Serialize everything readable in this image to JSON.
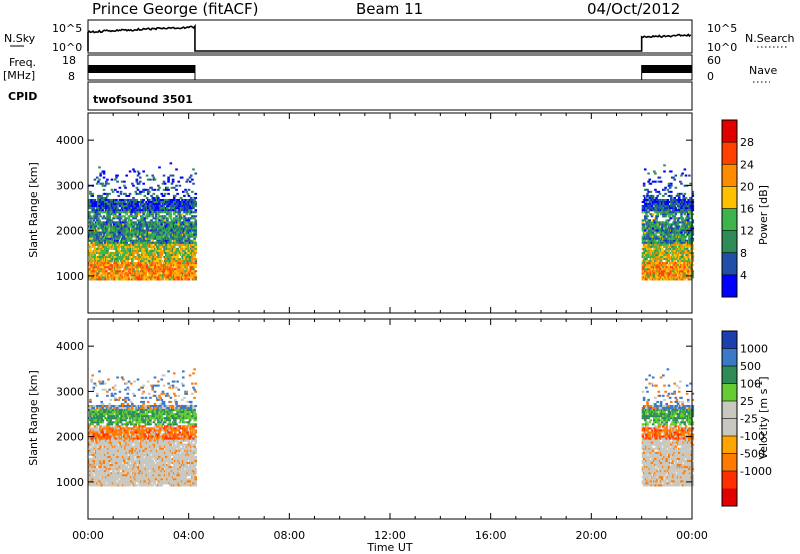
{
  "header": {
    "station": "Prince George (fitACF)",
    "beam": "Beam 11",
    "date": "04/Oct/2012"
  },
  "strips": {
    "nsky_label": "N.Sky",
    "nsky_ticks": [
      "10^5",
      "10^0"
    ],
    "nsearch_label": "N.Search",
    "freq_label": "Freq.",
    "freq_unit": "[MHz]",
    "freq_ticks": [
      "18",
      "8"
    ],
    "nave_label": "Nave",
    "nave_ticks": [
      "60",
      "0"
    ],
    "cpid_label": "CPID",
    "cpid_name": "twofsound 3501"
  },
  "chart_data": [
    {
      "type": "heatmap",
      "quantity": "power",
      "ylabel": "Slant Range [km]",
      "xlabel": "Time UT",
      "x_ticks": [
        "00:00",
        "04:00",
        "08:00",
        "12:00",
        "16:00",
        "20:00",
        "00:00"
      ],
      "xlim_hours": [
        0,
        24
      ],
      "y_ticks": [
        1000,
        2000,
        3000,
        4000
      ],
      "ylim": [
        180,
        4600
      ],
      "data_intervals_hours": [
        [
          0.0,
          4.25
        ],
        [
          22.0,
          24.0
        ]
      ],
      "colorbar": {
        "label": "Power [dB]",
        "ticks": [
          "28",
          "24",
          "20",
          "16",
          "12",
          "8",
          "4"
        ],
        "colors": [
          "#e00000",
          "#ff4000",
          "#ff8c00",
          "#ffc000",
          "#3cb44b",
          "#2e8b57",
          "#1f4fa8",
          "#0000ff"
        ]
      }
    },
    {
      "type": "heatmap",
      "quantity": "velocity",
      "ylabel": "Slant Range [km]",
      "xlabel": "Time UT",
      "x_ticks": [
        "00:00",
        "04:00",
        "08:00",
        "12:00",
        "16:00",
        "20:00",
        "00:00"
      ],
      "xlim_hours": [
        0,
        24
      ],
      "y_ticks": [
        1000,
        2000,
        3000,
        4000
      ],
      "ylim": [
        180,
        4600
      ],
      "data_intervals_hours": [
        [
          0.0,
          4.25
        ],
        [
          22.0,
          24.0
        ]
      ],
      "colorbar": {
        "label": "Velocity [m s",
        "label_sup": "-1",
        "label_end": "]",
        "ticks": [
          "1000",
          "500",
          "100",
          "25",
          "-25",
          "-100",
          "-500",
          "-1000"
        ],
        "colors": [
          "#1c3fb0",
          "#3a78c8",
          "#2e8b57",
          "#66cc33",
          "#c8c8c0",
          "#c8c8c0",
          "#ffa500",
          "#ff7a00",
          "#ff3000",
          "#e00000"
        ]
      }
    }
  ]
}
